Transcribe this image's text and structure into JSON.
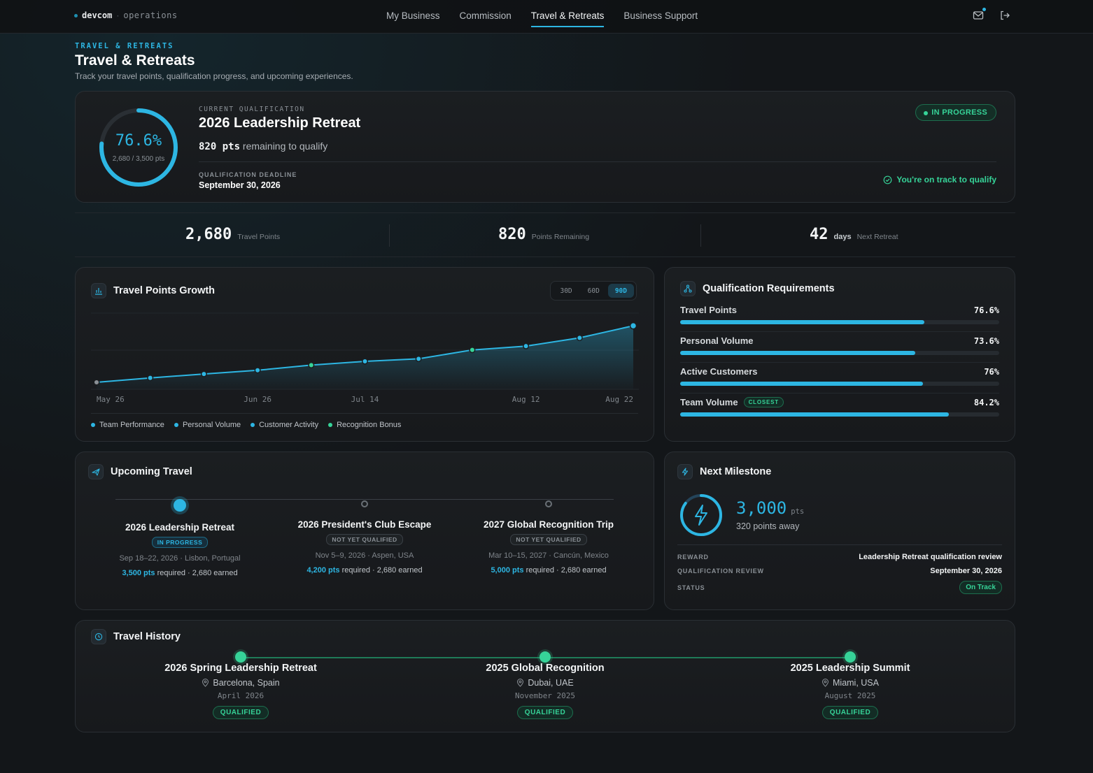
{
  "nav": {
    "brand": "devcom",
    "brand_sep": "·",
    "brand_section": "operations",
    "links": [
      "My Business",
      "Commission",
      "Travel & Retreats",
      "Business Support"
    ],
    "active_link": "Travel & Retreats",
    "icons": [
      "mail-icon",
      "logout-icon"
    ]
  },
  "header": {
    "eyebrow": "TRAVEL & RETREATS",
    "title": "Travel & Retreats",
    "subtitle": "Track your travel points, qualification progress, and upcoming experiences."
  },
  "hero": {
    "progress_pct": 76.6,
    "progress_label": "76.6%",
    "progress_sub": "2,680 / 3,500 pts",
    "label": "CURRENT QUALIFICATION",
    "title": "2026 Leadership Retreat",
    "remaining_value": "820 pts",
    "remaining_text": "remaining to qualify",
    "deadline_label": "QUALIFICATION DEADLINE",
    "deadline_value": "September 30, 2026",
    "status_pill": "IN PROGRESS",
    "on_track": "You're on track to qualify"
  },
  "stats": [
    {
      "num": "2,680",
      "unit": "",
      "label": "Travel Points"
    },
    {
      "num": "820",
      "unit": "",
      "label": "Points Remaining"
    },
    {
      "num": "42",
      "unit": "days",
      "label": "Next Retreat"
    }
  ],
  "growth": {
    "title": "Travel Points Growth",
    "ranges": [
      "30D",
      "60D",
      "90D"
    ],
    "active_range": "90D",
    "legend": [
      {
        "label": "Team Performance",
        "color": "#2db6e3"
      },
      {
        "label": "Personal Volume",
        "color": "#2db6e3"
      },
      {
        "label": "Customer Activity",
        "color": "#2db6e3"
      },
      {
        "label": "Recognition Bonus",
        "color": "#36d398"
      }
    ]
  },
  "chart_data": {
    "type": "area",
    "x_tick_labels": [
      "May 26",
      "Jun 26",
      "Jul 14",
      "Aug 12",
      "Aug 22"
    ],
    "points": [
      {
        "i": 0,
        "y": 0.0,
        "cat": "start"
      },
      {
        "i": 1,
        "y": 0.064,
        "cat": "Personal Volume"
      },
      {
        "i": 2,
        "y": 0.12,
        "cat": "Personal Volume"
      },
      {
        "i": 3,
        "y": 0.174,
        "cat": "Customer Activity"
      },
      {
        "i": 4,
        "y": 0.248,
        "cat": "Recognition Bonus"
      },
      {
        "i": 5,
        "y": 0.303,
        "cat": "Personal Volume"
      },
      {
        "i": 6,
        "y": 0.339,
        "cat": "Team Performance"
      },
      {
        "i": 7,
        "y": 0.468,
        "cat": "Recognition Bonus"
      },
      {
        "i": 8,
        "y": 0.523,
        "cat": "Team Performance"
      },
      {
        "i": 9,
        "y": 0.642,
        "cat": "Team Performance"
      },
      {
        "i": 10,
        "y": 0.817,
        "cat": "Team Performance"
      }
    ],
    "ylim": [
      0,
      1
    ],
    "grid": true
  },
  "requirements": {
    "title": "Qualification Requirements",
    "items": [
      {
        "name": "Travel Points",
        "pct": 76.6,
        "label": "76.6%",
        "tag": ""
      },
      {
        "name": "Personal Volume",
        "pct": 73.6,
        "label": "73.6%",
        "tag": ""
      },
      {
        "name": "Active Customers",
        "pct": 76,
        "label": "76%",
        "tag": ""
      },
      {
        "name": "Team Volume",
        "pct": 84.2,
        "label": "84.2%",
        "tag": "CLOSEST"
      }
    ]
  },
  "upcoming": {
    "title": "Upcoming Travel",
    "trips": [
      {
        "name": "2026 Leadership Retreat",
        "status": "IN PROGRESS",
        "dates": "Sep 18–22, 2026 · Lisbon, Portugal",
        "pts": "3,500 pts",
        "tail": "required · 2,680 earned"
      },
      {
        "name": "2026 President's Club Escape",
        "status": "NOT YET QUALIFIED",
        "dates": "Nov 5–9, 2026 · Aspen, USA",
        "pts": "4,200 pts",
        "tail": "required · 2,680 earned"
      },
      {
        "name": "2027 Global Recognition Trip",
        "status": "NOT YET QUALIFIED",
        "dates": "Mar 10–15, 2027 · Cancún, Mexico",
        "pts": "5,000 pts",
        "tail": "required · 2,680 earned"
      }
    ]
  },
  "milestone": {
    "title": "Next Milestone",
    "value": "3,000",
    "unit": "pts",
    "away": "320 points away",
    "reward_label": "REWARD",
    "reward_value": "Leadership Retreat qualification review",
    "review_label": "QUALIFICATION REVIEW",
    "review_value": "September 30, 2026",
    "status_label": "STATUS",
    "status_value": "On Track"
  },
  "history": {
    "title": "Travel History",
    "items": [
      {
        "name": "2026 Spring Leadership Retreat",
        "location": "Barcelona, Spain",
        "date": "April 2026",
        "status": "QUALIFIED"
      },
      {
        "name": "2025 Global Recognition",
        "location": "Dubai, UAE",
        "date": "November 2025",
        "status": "QUALIFIED"
      },
      {
        "name": "2025 Leadership Summit",
        "location": "Miami, USA",
        "date": "August 2025",
        "status": "QUALIFIED"
      }
    ]
  }
}
